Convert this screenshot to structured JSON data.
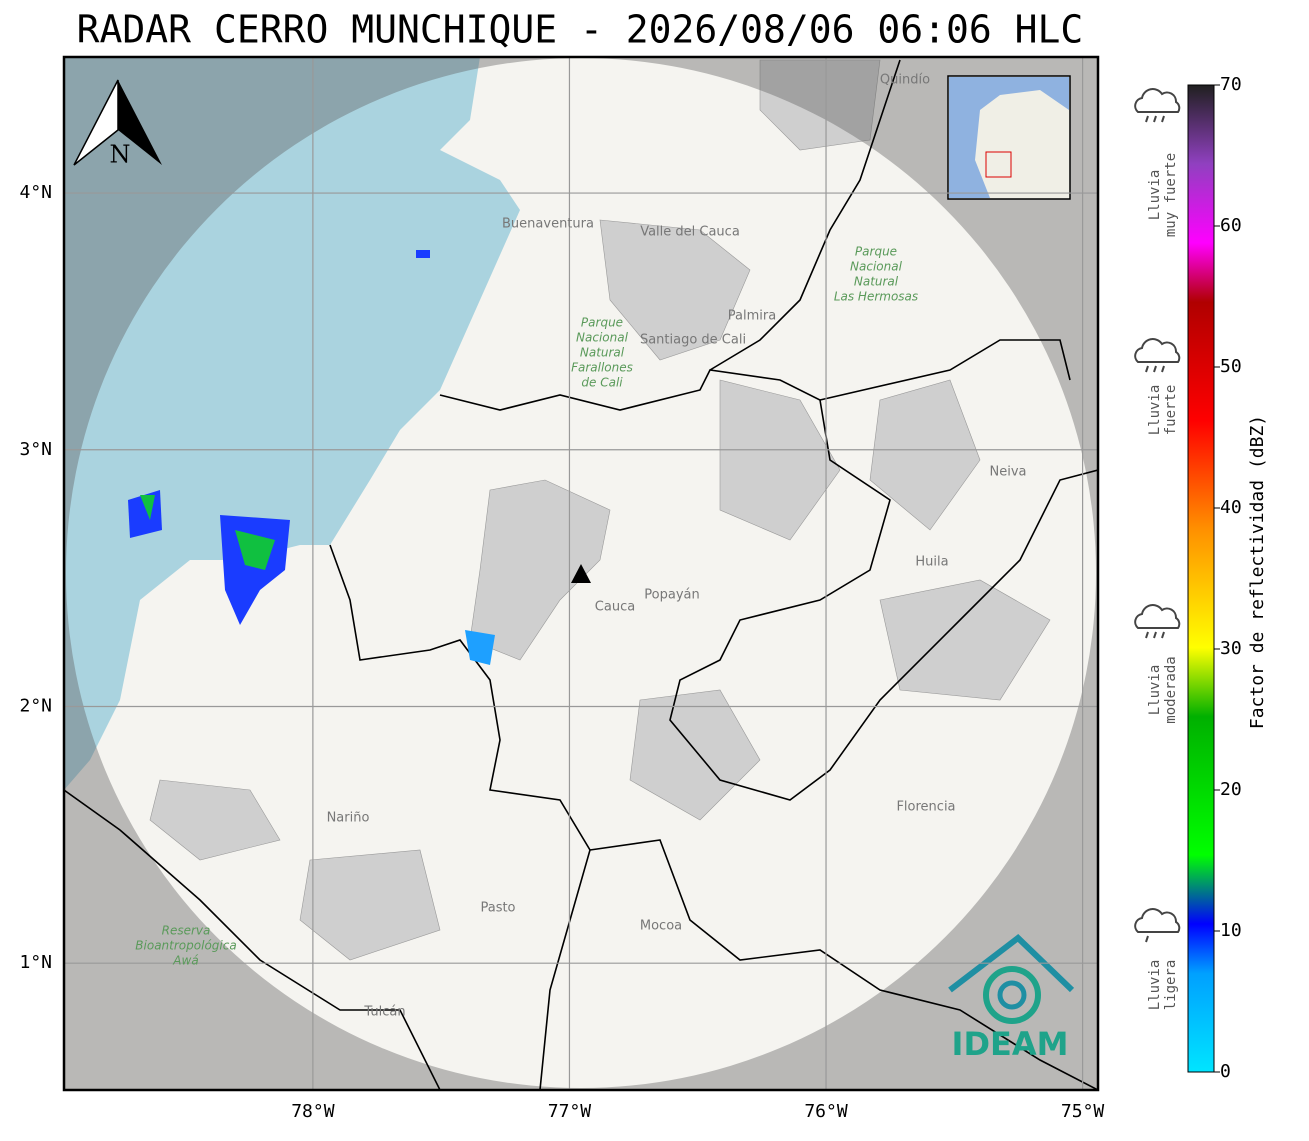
{
  "title": "RADAR CERRO MUNCHIQUE - 2026/08/06 06:06 HLC",
  "map": {
    "xlim": [
      -78.97,
      -74.94
    ],
    "ylim": [
      0.506,
      4.53
    ],
    "xticks": [
      {
        "value": -78,
        "label": "78°W"
      },
      {
        "value": -77,
        "label": "77°W"
      },
      {
        "value": -76,
        "label": "76°W"
      },
      {
        "value": -75,
        "label": "75°W"
      }
    ],
    "yticks": [
      {
        "value": 1,
        "label": "1°N"
      },
      {
        "value": 2,
        "label": "2°N"
      },
      {
        "value": 3,
        "label": "3°N"
      },
      {
        "value": 4,
        "label": "4°N"
      }
    ],
    "north": "N",
    "places": [
      "Buenaventura",
      "Valle del Cauca",
      "Santiago de Cali",
      "Palmira",
      "Quindío",
      "Neiva",
      "Huila",
      "Cauca",
      "Popayán",
      "Nariño",
      "Florencia",
      "Pasto",
      "Mocoa",
      "Tulcán"
    ],
    "parks": [
      [
        "Parque",
        "Nacional",
        "Natural",
        "Farallones",
        "de Cali"
      ],
      [
        "Parque",
        "Nacional",
        "Natural",
        "Las Hermosas"
      ],
      [
        "Reserva",
        "Bioantropológica",
        "Awá"
      ]
    ],
    "logo": "IDEAM"
  },
  "colorbar": {
    "label": "Factor de reflectividad (dBZ)",
    "lim": [
      0,
      70
    ],
    "ticks": [
      0,
      10,
      20,
      30,
      40,
      50,
      60,
      70
    ],
    "categories": [
      [
        "Lluvia",
        "muy fuerte"
      ],
      [
        "Lluvia",
        "fuerte"
      ],
      [
        "Lluvia",
        "moderada"
      ],
      [
        "Lluvia",
        "ligera"
      ]
    ]
  }
}
